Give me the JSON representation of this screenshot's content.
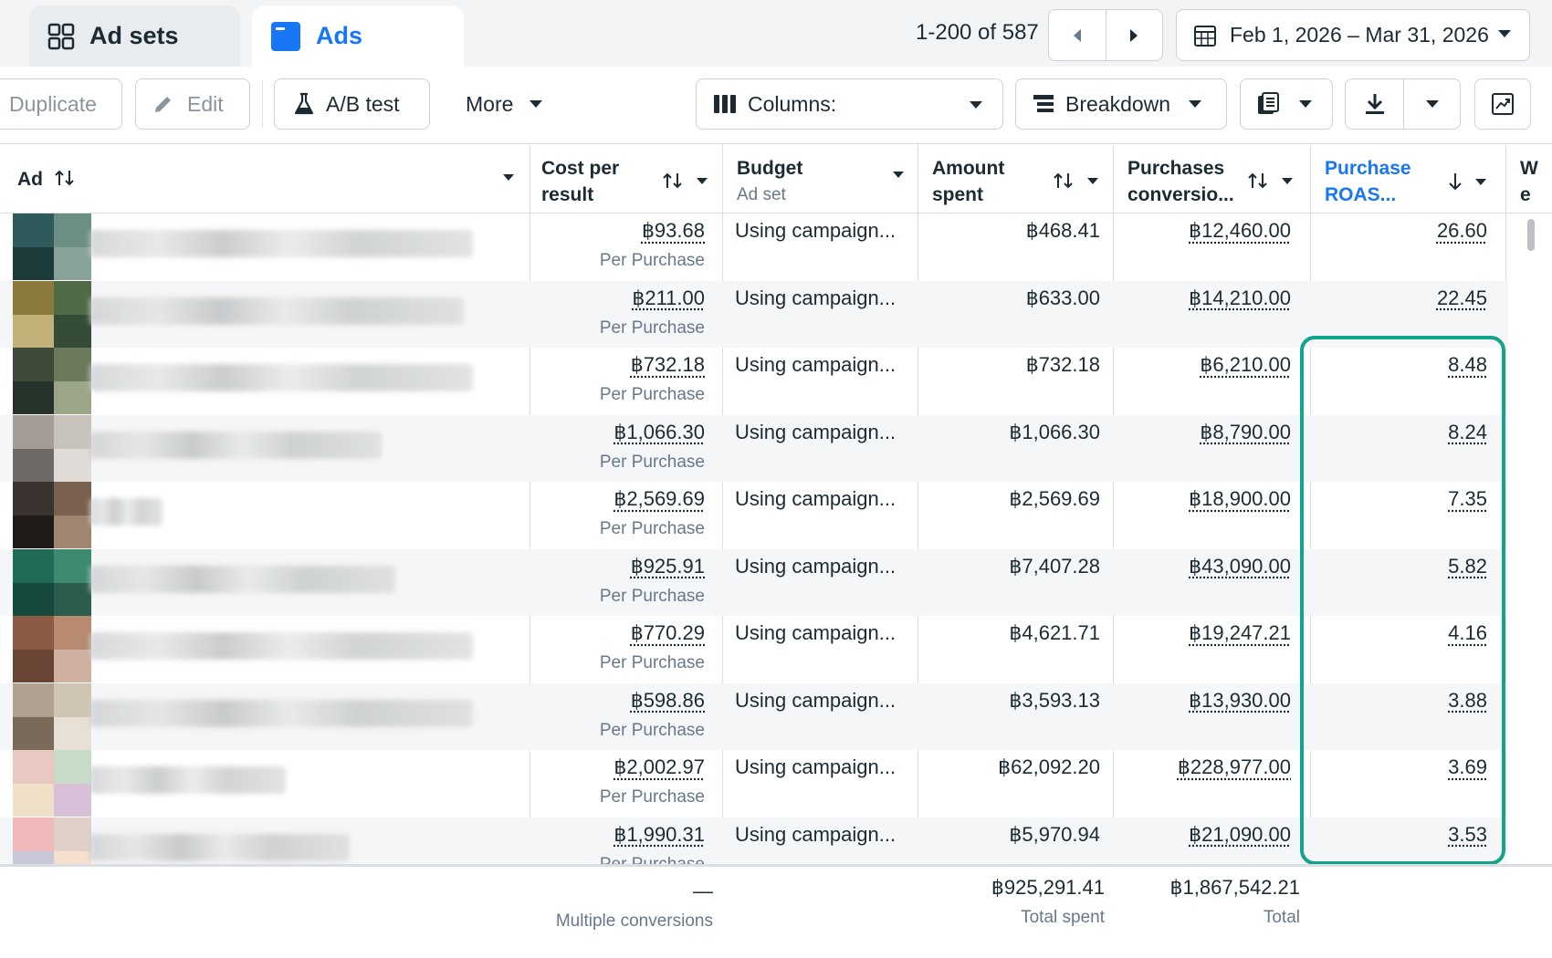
{
  "tabs": {
    "adsets": "Ad sets",
    "ads": "Ads"
  },
  "pagination": "1-200 of 587",
  "date_range": "Feb 1, 2026 – Mar 31, 2026",
  "toolbar": {
    "duplicate": "Duplicate",
    "edit": "Edit",
    "ab_test": "A/B test",
    "more": "More",
    "columns": "Columns:",
    "breakdown": "Breakdown"
  },
  "columns": {
    "ad": "Ad",
    "cost_per_result": "Cost per result",
    "budget": "Budget",
    "budget_sub": "Ad set",
    "amount_spent": "Amount spent",
    "purchases_conv": "Purchases conversio...",
    "purchase_roas": "Purchase ROAS...",
    "next_col": "We pu"
  },
  "rows": [
    {
      "cost": "฿93.68",
      "cost_sub": "Per Purchase",
      "budget": "Using campaign...",
      "spent": "฿468.41",
      "purchases": "฿12,460.00",
      "roas": "26.60"
    },
    {
      "cost": "฿211.00",
      "cost_sub": "Per Purchase",
      "budget": "Using campaign...",
      "spent": "฿633.00",
      "purchases": "฿14,210.00",
      "roas": "22.45"
    },
    {
      "cost": "฿732.18",
      "cost_sub": "Per Purchase",
      "budget": "Using campaign...",
      "spent": "฿732.18",
      "purchases": "฿6,210.00",
      "roas": "8.48"
    },
    {
      "cost": "฿1,066.30",
      "cost_sub": "Per Purchase",
      "budget": "Using campaign...",
      "spent": "฿1,066.30",
      "purchases": "฿8,790.00",
      "roas": "8.24"
    },
    {
      "cost": "฿2,569.69",
      "cost_sub": "Per Purchase",
      "budget": "Using campaign...",
      "spent": "฿2,569.69",
      "purchases": "฿18,900.00",
      "roas": "7.35"
    },
    {
      "cost": "฿925.91",
      "cost_sub": "Per Purchase",
      "budget": "Using campaign...",
      "spent": "฿7,407.28",
      "purchases": "฿43,090.00",
      "roas": "5.82"
    },
    {
      "cost": "฿770.29",
      "cost_sub": "Per Purchase",
      "budget": "Using campaign...",
      "spent": "฿4,621.71",
      "purchases": "฿19,247.21",
      "roas": "4.16"
    },
    {
      "cost": "฿598.86",
      "cost_sub": "Per Purchase",
      "budget": "Using campaign...",
      "spent": "฿3,593.13",
      "purchases": "฿13,930.00",
      "roas": "3.88"
    },
    {
      "cost": "฿2,002.97",
      "cost_sub": "Per Purchase",
      "budget": "Using campaign...",
      "spent": "฿62,092.20",
      "purchases": "฿228,977.00",
      "roas": "3.69"
    },
    {
      "cost": "฿1,990.31",
      "cost_sub": "Per Purchase",
      "budget": "Using campaign...",
      "spent": "฿5,970.94",
      "purchases": "฿21,090.00",
      "roas": "3.53"
    }
  ],
  "totals": {
    "cost": "—",
    "cost_sub": "Multiple conversions",
    "spent": "฿925,291.41",
    "spent_sub": "Total spent",
    "purchases": "฿1,867,542.21",
    "purchases_sub": "Total"
  },
  "colors": {
    "accent": "#1877f2",
    "highlight": "#14a38b"
  }
}
